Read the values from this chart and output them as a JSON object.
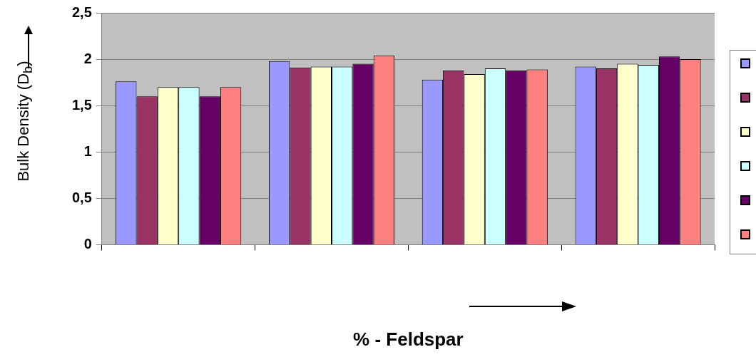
{
  "chart_data": {
    "type": "bar",
    "xlabel": "% - Feldspar",
    "ylabel": "Bulk Density (D$_{b}$)",
    "categories": [
      null,
      null,
      null,
      null
    ],
    "series": [
      {
        "color": "#9999ff",
        "values": [
          1.76,
          1.98,
          1.78,
          1.92
        ]
      },
      {
        "color": "#993366",
        "values": [
          1.6,
          1.91,
          1.88,
          1.9
        ]
      },
      {
        "color": "#ffffcc",
        "values": [
          1.7,
          1.92,
          1.84,
          1.95
        ]
      },
      {
        "color": "#ccffff",
        "values": [
          1.7,
          1.92,
          1.9,
          1.94
        ]
      },
      {
        "color": "#660066",
        "values": [
          1.6,
          1.95,
          1.88,
          2.03
        ]
      },
      {
        "color": "#ff8080",
        "values": [
          1.7,
          2.04,
          1.89,
          2.0
        ]
      }
    ],
    "ylim": [
      0,
      2.5
    ],
    "yticks": [
      {
        "value": 0,
        "label": "0"
      },
      {
        "value": 0.5,
        "label": "0,5"
      },
      {
        "value": 1,
        "label": "1"
      },
      {
        "value": 1.5,
        "label": "1,5"
      },
      {
        "value": 2,
        "label": "2"
      },
      {
        "value": 2.5,
        "label": "2,5"
      }
    ],
    "grid": "y"
  }
}
